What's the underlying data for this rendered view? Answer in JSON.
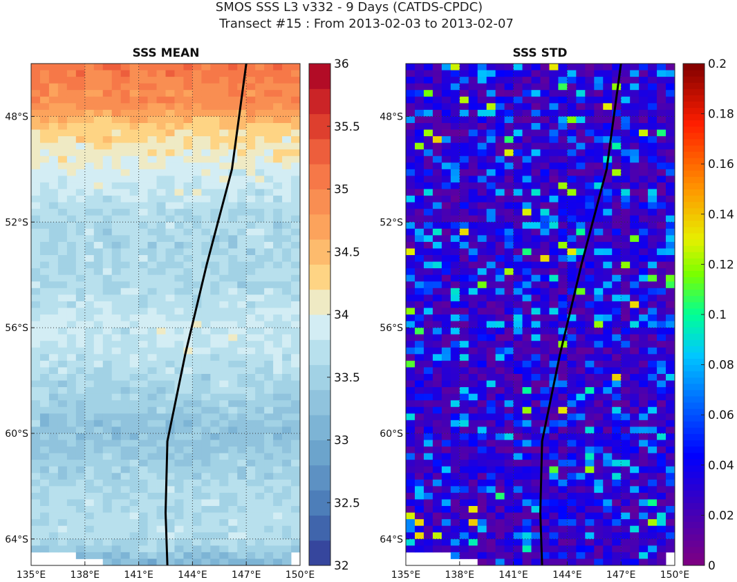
{
  "title_line1": "SMOS SSS L3 v332 - 9 Days (CATDS-CPDC)",
  "title_line2": "Transect #15 : From 2013-02-03 to 2013-02-07",
  "chart_data": [
    {
      "type": "heatmap",
      "title": "SSS MEAN",
      "lon_range": [
        135,
        150
      ],
      "lat_range": [
        -65,
        -46
      ],
      "lon_ticks": [
        "135°E",
        "138°E",
        "141°E",
        "144°E",
        "147°E",
        "150°E"
      ],
      "lon_tick_values": [
        135,
        138,
        141,
        144,
        147,
        150
      ],
      "lat_ticks": [
        "48°S",
        "52°S",
        "56°S",
        "60°S",
        "64°S"
      ],
      "lat_tick_values": [
        -48,
        -52,
        -56,
        -60,
        -64
      ],
      "grid": true,
      "colorbar": {
        "range": [
          32,
          36
        ],
        "ticks": [
          "32",
          "32.5",
          "33",
          "33.5",
          "34",
          "34.5",
          "35",
          "35.5",
          "36"
        ],
        "tick_values": [
          32,
          32.5,
          33,
          33.5,
          34,
          34.5,
          35,
          35.5,
          36
        ],
        "levels": 20,
        "colormap": "RdYlBu_r"
      },
      "approx_field_profile": [
        {
          "lat": -46.0,
          "sss": 35.1
        },
        {
          "lat": -47.5,
          "sss": 34.9
        },
        {
          "lat": -48.5,
          "sss": 34.3
        },
        {
          "lat": -50.0,
          "sss": 33.95
        },
        {
          "lat": -52.0,
          "sss": 33.6
        },
        {
          "lat": -54.0,
          "sss": 33.6
        },
        {
          "lat": -56.0,
          "sss": 33.85
        },
        {
          "lat": -58.0,
          "sss": 33.6
        },
        {
          "lat": -60.0,
          "sss": 33.3
        },
        {
          "lat": -62.0,
          "sss": 33.6
        },
        {
          "lat": -64.0,
          "sss": 33.7
        },
        {
          "lat": -65.0,
          "sss": 33.1
        }
      ]
    },
    {
      "type": "heatmap",
      "title": "SSS STD",
      "lon_range": [
        135,
        150
      ],
      "lat_range": [
        -65,
        -46
      ],
      "lon_ticks": [
        "135°E",
        "138°E",
        "141°E",
        "144°E",
        "147°E",
        "150°E"
      ],
      "lon_tick_values": [
        135,
        138,
        141,
        144,
        147,
        150
      ],
      "lat_ticks": [
        "48°S",
        "52°S",
        "56°S",
        "60°S",
        "64°S"
      ],
      "lat_tick_values": [
        -48,
        -52,
        -56,
        -60,
        -64
      ],
      "grid": true,
      "colorbar": {
        "range": [
          0,
          0.2
        ],
        "ticks": [
          "0",
          "0.02",
          "0.04",
          "0.06",
          "0.08",
          "0.1",
          "0.12",
          "0.14",
          "0.16",
          "0.18",
          "0.2"
        ],
        "tick_values": [
          0,
          0.02,
          0.04,
          0.06,
          0.08,
          0.1,
          0.12,
          0.14,
          0.16,
          0.18,
          0.2
        ],
        "colormap": "jet"
      },
      "approx_typical_value": 0.03
    }
  ],
  "transect": {
    "color": "#000000",
    "points": [
      {
        "lon": 142.6,
        "lat": -65.0
      },
      {
        "lon": 142.5,
        "lat": -63.0
      },
      {
        "lon": 142.6,
        "lat": -60.3
      },
      {
        "lon": 143.6,
        "lat": -57.0
      },
      {
        "lon": 144.8,
        "lat": -53.6
      },
      {
        "lon": 146.2,
        "lat": -50.0
      },
      {
        "lon": 147.0,
        "lat": -46.0
      }
    ]
  },
  "colors": {
    "transect_line": "#000000",
    "background": "#ffffff"
  }
}
